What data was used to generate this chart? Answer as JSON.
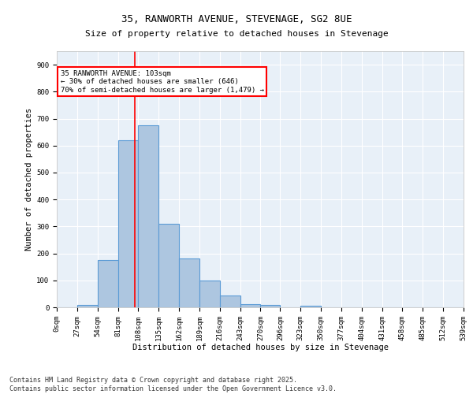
{
  "title_line1": "35, RANWORTH AVENUE, STEVENAGE, SG2 8UE",
  "title_line2": "Size of property relative to detached houses in Stevenage",
  "xlabel": "Distribution of detached houses by size in Stevenage",
  "ylabel": "Number of detached properties",
  "bin_edges": [
    0,
    27,
    54,
    81,
    108,
    135,
    162,
    189,
    216,
    243,
    270,
    296,
    323,
    350,
    377,
    404,
    431,
    458,
    485,
    512,
    539
  ],
  "bar_heights": [
    0,
    10,
    175,
    620,
    675,
    310,
    180,
    100,
    43,
    12,
    10,
    0,
    5,
    0,
    0,
    0,
    0,
    0,
    0,
    0
  ],
  "bar_color": "#adc6e0",
  "bar_edgecolor": "#5b9bd5",
  "bar_linewidth": 0.8,
  "vline_x": 103,
  "vline_color": "red",
  "vline_linewidth": 1.2,
  "annotation_text": "35 RANWORTH AVENUE: 103sqm\n← 30% of detached houses are smaller (646)\n70% of semi-detached houses are larger (1,479) →",
  "annotation_box_edgecolor": "red",
  "annotation_box_facecolor": "white",
  "annotation_fontsize": 6.5,
  "ylim": [
    0,
    950
  ],
  "yticks": [
    0,
    100,
    200,
    300,
    400,
    500,
    600,
    700,
    800,
    900
  ],
  "background_color": "#e8f0f8",
  "grid_color": "white",
  "footer_line1": "Contains HM Land Registry data © Crown copyright and database right 2025.",
  "footer_line2": "Contains public sector information licensed under the Open Government Licence v3.0.",
  "footer_fontsize": 6,
  "title1_fontsize": 9,
  "title2_fontsize": 8,
  "xlabel_fontsize": 7.5,
  "ylabel_fontsize": 7.5,
  "tick_fontsize": 6.5
}
